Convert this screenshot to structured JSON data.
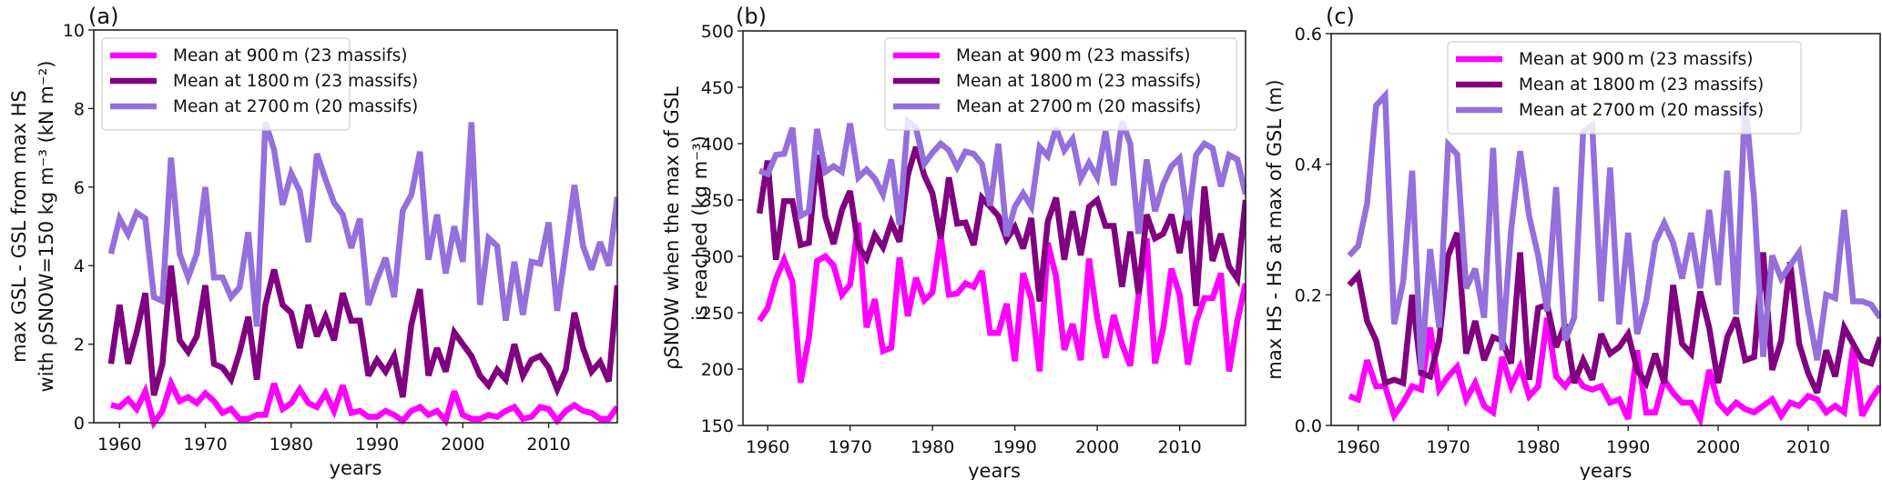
{
  "chart_data": [
    {
      "type": "line",
      "panel_label": "(a)",
      "xlabel": "years",
      "ylabel_lines": [
        "max GSL - GSL from max HS",
        "with ρSNOW=150 kg m⁻³ (kN m⁻²)"
      ],
      "xlim": [
        1957,
        2018
      ],
      "ylim": [
        0,
        10
      ],
      "xticks": [
        1960,
        1970,
        1980,
        1990,
        2000,
        2010
      ],
      "yticks": [
        0,
        2,
        4,
        6,
        8,
        10
      ],
      "ytick_labels": [
        "0",
        "2",
        "4",
        "6",
        "8",
        "10"
      ],
      "legend_position": "upper-left",
      "grid": false,
      "x_start": 1959,
      "series": [
        {
          "name": "Mean at 900 m (23 massifs)",
          "color": "#FF00FF",
          "values": [
            0.45,
            0.4,
            0.6,
            0.35,
            0.8,
            0.0,
            0.3,
            1.0,
            0.55,
            0.65,
            0.5,
            0.75,
            0.55,
            0.25,
            0.35,
            0.1,
            0.1,
            0.2,
            0.2,
            1.0,
            0.35,
            0.5,
            0.85,
            0.5,
            0.4,
            0.75,
            0.3,
            0.95,
            0.25,
            0.3,
            0.15,
            0.15,
            0.3,
            0.2,
            0.05,
            0.3,
            0.4,
            0.2,
            0.3,
            0.05,
            0.8,
            0.2,
            0.1,
            0.1,
            0.2,
            0.15,
            0.3,
            0.4,
            0.1,
            0.15,
            0.4,
            0.35,
            0.05,
            0.3,
            0.45,
            0.3,
            0.25,
            0.1,
            0.1,
            0.4
          ]
        },
        {
          "name": "Mean at 1800 m (23 massifs)",
          "color": "#800080",
          "values": [
            1.5,
            3.0,
            1.5,
            2.3,
            3.3,
            0.7,
            1.5,
            4.0,
            2.1,
            1.8,
            2.2,
            3.5,
            1.5,
            1.4,
            1.1,
            1.8,
            2.7,
            1.1,
            3.0,
            3.9,
            3.0,
            2.8,
            1.9,
            3.0,
            2.2,
            2.7,
            2.1,
            3.3,
            2.6,
            2.6,
            1.2,
            1.6,
            1.3,
            1.7,
            0.65,
            2.5,
            3.4,
            1.2,
            1.9,
            1.3,
            2.3,
            2.0,
            1.7,
            1.2,
            0.95,
            1.35,
            1.1,
            2.0,
            1.2,
            1.6,
            1.7,
            1.4,
            0.85,
            1.35,
            2.8,
            1.9,
            1.3,
            1.55,
            1.05,
            3.5
          ]
        },
        {
          "name": "Mean at 2700 m (20 massifs)",
          "color": "#9370DB",
          "values": [
            4.3,
            5.2,
            4.8,
            5.35,
            5.2,
            3.2,
            3.1,
            6.75,
            4.3,
            3.7,
            4.3,
            6.0,
            3.7,
            3.7,
            3.2,
            3.45,
            4.85,
            2.45,
            7.65,
            6.95,
            5.55,
            6.35,
            5.9,
            4.6,
            6.85,
            6.2,
            5.6,
            5.3,
            4.45,
            5.2,
            3.0,
            3.65,
            4.2,
            3.2,
            5.4,
            5.8,
            6.9,
            4.15,
            5.3,
            3.8,
            5.0,
            4.1,
            7.65,
            3.0,
            4.7,
            4.5,
            2.6,
            4.1,
            2.75,
            4.1,
            4.05,
            5.1,
            2.85,
            4.4,
            6.05,
            4.5,
            3.9,
            4.6,
            4.0,
            5.75
          ]
        }
      ]
    },
    {
      "type": "line",
      "panel_label": "(b)",
      "xlabel": "years",
      "ylabel_lines": [
        "ρSNOW when the max of GSL",
        "is reached (kg m⁻³)"
      ],
      "xlim": [
        1957,
        2018
      ],
      "ylim": [
        150,
        500
      ],
      "xticks": [
        1960,
        1970,
        1980,
        1990,
        2000,
        2010
      ],
      "yticks": [
        150,
        200,
        250,
        300,
        350,
        400,
        450,
        500
      ],
      "ytick_labels": [
        "150",
        "200",
        "250",
        "300",
        "350",
        "400",
        "450",
        "500"
      ],
      "legend_position": "upper-right",
      "grid": false,
      "x_start": 1959,
      "series": [
        {
          "name": "Mean at 900 m (23 massifs)",
          "color": "#FF00FF",
          "values": [
            243,
            254,
            280,
            297,
            278,
            188,
            228,
            296,
            300,
            292,
            266,
            275,
            330,
            237,
            262,
            216,
            219,
            299,
            247,
            281,
            261,
            268,
            318,
            266,
            267,
            276,
            273,
            287,
            232,
            232,
            258,
            207,
            285,
            262,
            198,
            312,
            282,
            217,
            240,
            208,
            298,
            245,
            210,
            248,
            222,
            203,
            265,
            316,
            205,
            236,
            289,
            266,
            204,
            242,
            263,
            263,
            285,
            198,
            243,
            276
          ]
        },
        {
          "name": "Mean at 1800 m (23 massifs)",
          "color": "#800080",
          "values": [
            338,
            385,
            297,
            349,
            349,
            310,
            312,
            390,
            335,
            311,
            341,
            358,
            309,
            298,
            319,
            308,
            330,
            313,
            372,
            397,
            372,
            356,
            316,
            370,
            329,
            330,
            310,
            352,
            344,
            336,
            315,
            326,
            307,
            334,
            260,
            331,
            352,
            297,
            340,
            301,
            344,
            350,
            327,
            327,
            273,
            322,
            267,
            337,
            316,
            320,
            337,
            303,
            345,
            256,
            362,
            296,
            320,
            291,
            280,
            350
          ]
        },
        {
          "name": "Mean at 2700 m (20 massifs)",
          "color": "#9370DB",
          "values": [
            376,
            373,
            390,
            391,
            414,
            336,
            340,
            413,
            375,
            380,
            375,
            418,
            370,
            377,
            369,
            355,
            386,
            328,
            420,
            414,
            382,
            392,
            400,
            394,
            379,
            393,
            391,
            382,
            345,
            400,
            318,
            344,
            356,
            344,
            397,
            389,
            414,
            394,
            404,
            369,
            383,
            370,
            411,
            363,
            420,
            400,
            320,
            386,
            340,
            364,
            380,
            387,
            332,
            390,
            400,
            396,
            362,
            390,
            386,
            355
          ]
        }
      ]
    },
    {
      "type": "line",
      "panel_label": "(c)",
      "xlabel": "years",
      "ylabel_lines": [
        "max HS - HS at max of GSL (m)"
      ],
      "xlim": [
        1957,
        2018
      ],
      "ylim": [
        0.0,
        0.6
      ],
      "xticks": [
        1960,
        1970,
        1980,
        1990,
        2000,
        2010
      ],
      "yticks": [
        0.0,
        0.2,
        0.4,
        0.6
      ],
      "ytick_labels": [
        "0.0",
        "0.2",
        "0.4",
        "0.6"
      ],
      "legend_position": "upper-right",
      "grid": false,
      "x_start": 1959,
      "series": [
        {
          "name": "Mean at 900 m (23 massifs)",
          "color": "#FF00FF",
          "values": [
            0.045,
            0.04,
            0.1,
            0.06,
            0.06,
            0.015,
            0.035,
            0.06,
            0.055,
            0.15,
            0.055,
            0.075,
            0.09,
            0.04,
            0.065,
            0.03,
            0.02,
            0.105,
            0.06,
            0.09,
            0.045,
            0.06,
            0.165,
            0.075,
            0.06,
            0.08,
            0.06,
            0.055,
            0.06,
            0.035,
            0.04,
            0.01,
            0.115,
            0.02,
            0.02,
            0.07,
            0.05,
            0.035,
            0.035,
            0.01,
            0.085,
            0.035,
            0.02,
            0.035,
            0.025,
            0.02,
            0.03,
            0.04,
            0.015,
            0.035,
            0.03,
            0.045,
            0.04,
            0.02,
            0.03,
            0.02,
            0.12,
            0.015,
            0.04,
            0.06
          ]
        },
        {
          "name": "Mean at 1800 m (23 massifs)",
          "color": "#800080",
          "values": [
            0.215,
            0.23,
            0.16,
            0.13,
            0.065,
            0.07,
            0.065,
            0.2,
            0.08,
            0.075,
            0.13,
            0.26,
            0.295,
            0.11,
            0.16,
            0.1,
            0.135,
            0.13,
            0.095,
            0.265,
            0.07,
            0.18,
            0.185,
            0.12,
            0.155,
            0.065,
            0.1,
            0.07,
            0.14,
            0.11,
            0.12,
            0.14,
            0.085,
            0.065,
            0.11,
            0.065,
            0.215,
            0.125,
            0.11,
            0.205,
            0.15,
            0.065,
            0.135,
            0.165,
            0.1,
            0.105,
            0.265,
            0.085,
            0.13,
            0.25,
            0.125,
            0.08,
            0.05,
            0.115,
            0.075,
            0.15,
            0.125,
            0.1,
            0.095,
            0.135
          ]
        },
        {
          "name": "Mean at 2700 m (20 massifs)",
          "color": "#9370DB",
          "values": [
            0.26,
            0.275,
            0.34,
            0.49,
            0.505,
            0.155,
            0.22,
            0.39,
            0.085,
            0.27,
            0.15,
            0.43,
            0.415,
            0.21,
            0.24,
            0.165,
            0.425,
            0.115,
            0.3,
            0.42,
            0.32,
            0.26,
            0.175,
            0.365,
            0.13,
            0.165,
            0.45,
            0.46,
            0.19,
            0.395,
            0.155,
            0.295,
            0.14,
            0.19,
            0.28,
            0.31,
            0.28,
            0.225,
            0.295,
            0.21,
            0.33,
            0.215,
            0.39,
            0.17,
            0.5,
            0.345,
            0.105,
            0.26,
            0.225,
            0.245,
            0.265,
            0.175,
            0.1,
            0.2,
            0.195,
            0.33,
            0.19,
            0.19,
            0.185,
            0.165
          ]
        }
      ]
    }
  ]
}
